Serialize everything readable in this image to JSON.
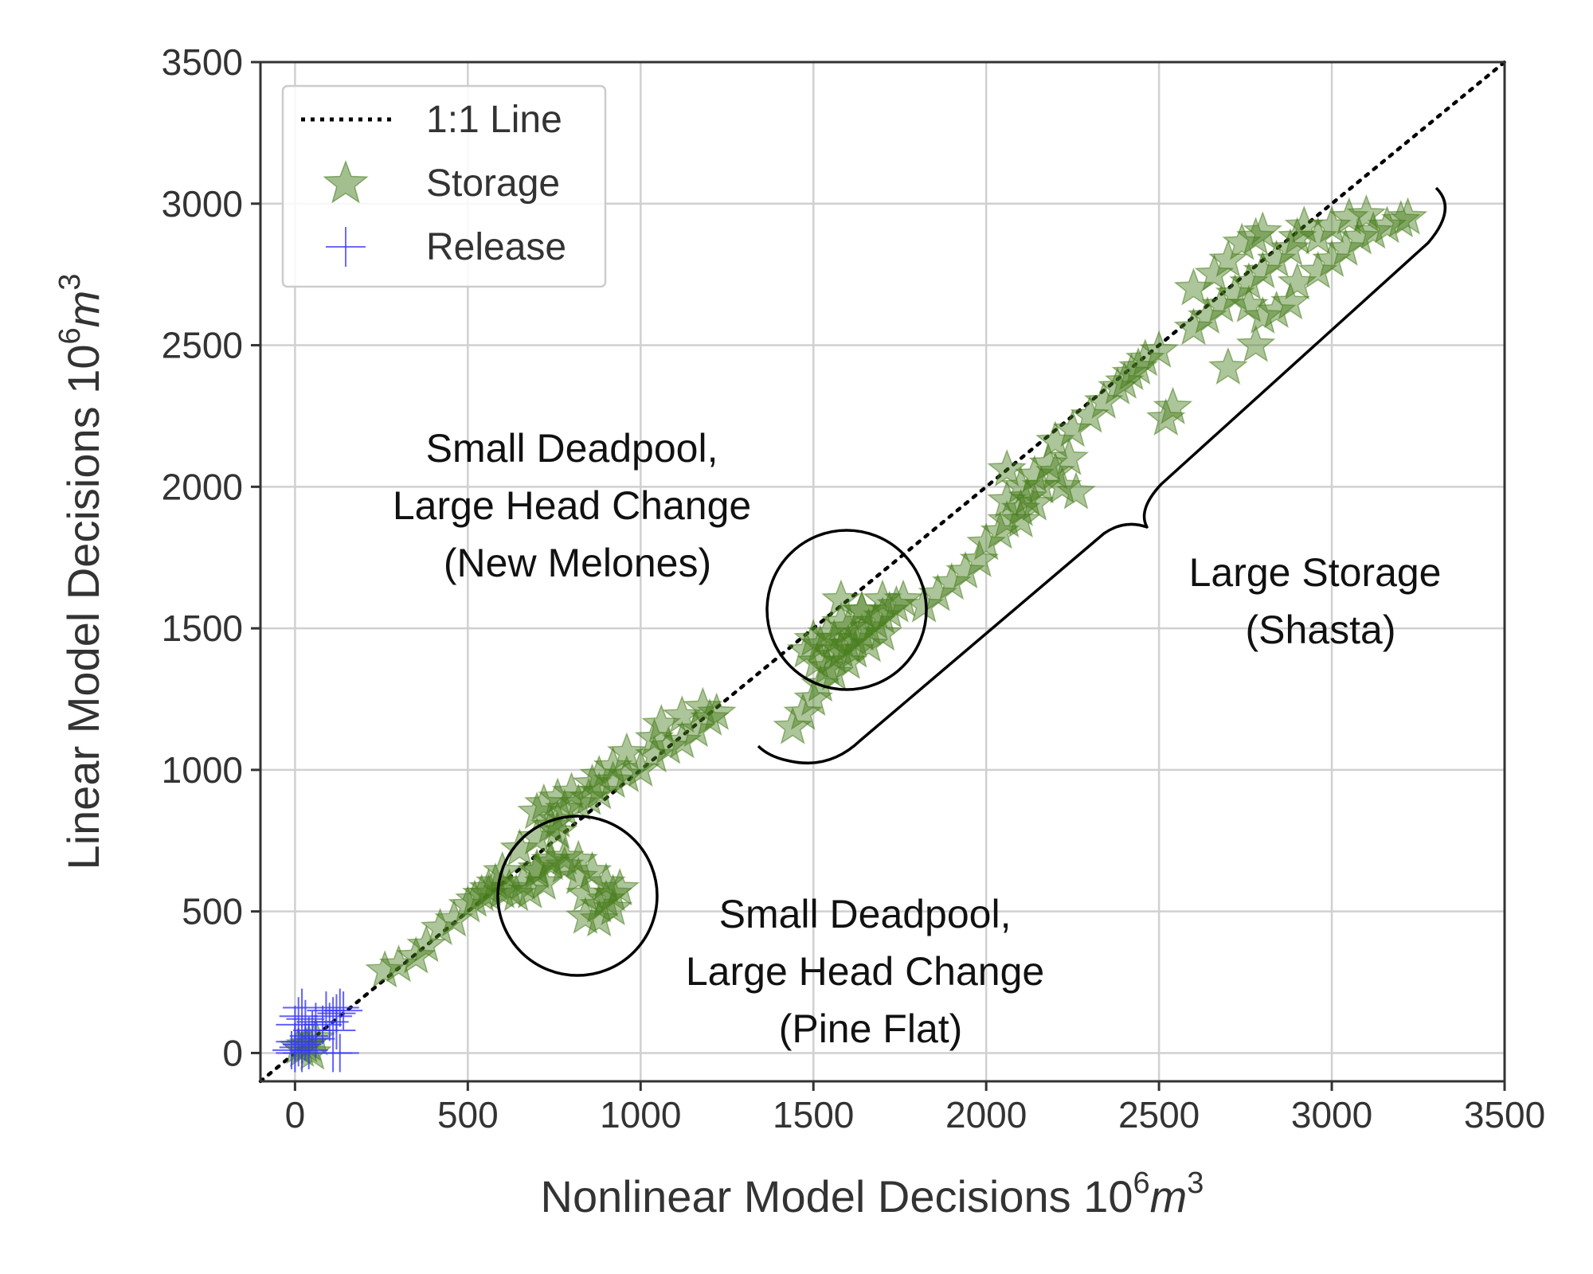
{
  "chart_data": {
    "type": "scatter",
    "xlabel": "Nonlinear Model Decisions",
    "ylabel": "Linear Model Decisions",
    "unit_base": "10",
    "unit_exp": "6",
    "unit_var": "m",
    "unit_pow": "3",
    "xlim": [
      -100,
      3500
    ],
    "ylim": [
      -100,
      3500
    ],
    "x_ticks": [
      "0",
      "500",
      "1000",
      "1500",
      "2000",
      "2500",
      "3000",
      "3500"
    ],
    "y_ticks": [
      "0",
      "500",
      "1000",
      "1500",
      "2000",
      "2500",
      "3000",
      "3500"
    ],
    "grid": true,
    "legend": {
      "position": "top-left",
      "entries": [
        {
          "label": "1:1 Line",
          "marker": "dotted-line",
          "color": "#000000"
        },
        {
          "label": "Storage",
          "marker": "star",
          "color": "#4a7f1f"
        },
        {
          "label": "Release",
          "marker": "plus",
          "color": "#3a3aff"
        }
      ]
    },
    "reference_line": {
      "name": "1:1 Line",
      "x": [
        -100,
        3500
      ],
      "y": [
        -100,
        3500
      ]
    },
    "series": [
      {
        "name": "Storage",
        "marker": "star",
        "color": "#4a7f1f",
        "points": [
          [
            20,
            10
          ],
          [
            40,
            30
          ],
          [
            60,
            50
          ],
          [
            30,
            25
          ],
          [
            50,
            0
          ],
          [
            10,
            20
          ],
          [
            260,
            290
          ],
          [
            300,
            310
          ],
          [
            350,
            340
          ],
          [
            380,
            380
          ],
          [
            420,
            440
          ],
          [
            460,
            470
          ],
          [
            500,
            520
          ],
          [
            520,
            540
          ],
          [
            560,
            580
          ],
          [
            580,
            600
          ],
          [
            600,
            640
          ],
          [
            540,
            560
          ],
          [
            560,
            560
          ],
          [
            600,
            570
          ],
          [
            640,
            560
          ],
          [
            680,
            570
          ],
          [
            720,
            600
          ],
          [
            700,
            650
          ],
          [
            740,
            670
          ],
          [
            780,
            660
          ],
          [
            820,
            620
          ],
          [
            840,
            560
          ],
          [
            880,
            520
          ],
          [
            900,
            540
          ],
          [
            920,
            560
          ],
          [
            940,
            580
          ],
          [
            900,
            600
          ],
          [
            860,
            640
          ],
          [
            820,
            680
          ],
          [
            780,
            690
          ],
          [
            740,
            680
          ],
          [
            700,
            640
          ],
          [
            660,
            600
          ],
          [
            620,
            580
          ],
          [
            840,
            480
          ],
          [
            880,
            470
          ],
          [
            920,
            510
          ],
          [
            650,
            720
          ],
          [
            700,
            760
          ],
          [
            740,
            800
          ],
          [
            760,
            820
          ],
          [
            780,
            860
          ],
          [
            820,
            880
          ],
          [
            850,
            900
          ],
          [
            880,
            920
          ],
          [
            920,
            960
          ],
          [
            960,
            980
          ],
          [
            1000,
            1000
          ],
          [
            1040,
            1050
          ],
          [
            1080,
            1080
          ],
          [
            1120,
            1100
          ],
          [
            1160,
            1140
          ],
          [
            1200,
            1180
          ],
          [
            1220,
            1200
          ],
          [
            1180,
            1220
          ],
          [
            1120,
            1190
          ],
          [
            1060,
            1160
          ],
          [
            1040,
            1110
          ],
          [
            960,
            1060
          ],
          [
            920,
            1010
          ],
          [
            880,
            980
          ],
          [
            860,
            950
          ],
          [
            800,
            920
          ],
          [
            760,
            900
          ],
          [
            720,
            880
          ],
          [
            700,
            850
          ],
          [
            760,
            780
          ],
          [
            1440,
            1150
          ],
          [
            1470,
            1200
          ],
          [
            1500,
            1250
          ],
          [
            1520,
            1300
          ],
          [
            1510,
            1380
          ],
          [
            1540,
            1360
          ],
          [
            1560,
            1400
          ],
          [
            1580,
            1420
          ],
          [
            1600,
            1440
          ],
          [
            1620,
            1460
          ],
          [
            1640,
            1480
          ],
          [
            1660,
            1500
          ],
          [
            1680,
            1520
          ],
          [
            1700,
            1540
          ],
          [
            1720,
            1560
          ],
          [
            1740,
            1580
          ],
          [
            1760,
            1600
          ],
          [
            1700,
            1600
          ],
          [
            1640,
            1560
          ],
          [
            1580,
            1520
          ],
          [
            1540,
            1480
          ],
          [
            1500,
            1460
          ],
          [
            1480,
            1420
          ],
          [
            1520,
            1440
          ],
          [
            1560,
            1460
          ],
          [
            1600,
            1500
          ],
          [
            1620,
            1420
          ],
          [
            1660,
            1440
          ],
          [
            1700,
            1480
          ],
          [
            1600,
            1380
          ],
          [
            1560,
            1340
          ],
          [
            1640,
            1560
          ],
          [
            1580,
            1600
          ],
          [
            1820,
            1580
          ],
          [
            1860,
            1620
          ],
          [
            1900,
            1660
          ],
          [
            1940,
            1700
          ],
          [
            1980,
            1740
          ],
          [
            2000,
            1800
          ],
          [
            2040,
            1840
          ],
          [
            2060,
            1880
          ],
          [
            2100,
            1920
          ],
          [
            2120,
            1960
          ],
          [
            2160,
            2000
          ],
          [
            2200,
            2050
          ],
          [
            2240,
            2100
          ],
          [
            2060,
            1950
          ],
          [
            2100,
            2000
          ],
          [
            2140,
            2040
          ],
          [
            2180,
            2080
          ],
          [
            2220,
            2000
          ],
          [
            2260,
            1980
          ],
          [
            2140,
            1940
          ],
          [
            2100,
            1880
          ],
          [
            2060,
            2060
          ],
          [
            2200,
            2160
          ],
          [
            2250,
            2200
          ],
          [
            2300,
            2250
          ],
          [
            2340,
            2300
          ],
          [
            2380,
            2350
          ],
          [
            2420,
            2400
          ],
          [
            2460,
            2450
          ],
          [
            2500,
            2480
          ],
          [
            2520,
            2240
          ],
          [
            2540,
            2280
          ],
          [
            2400,
            2370
          ],
          [
            2440,
            2420
          ],
          [
            2600,
            2560
          ],
          [
            2640,
            2600
          ],
          [
            2680,
            2640
          ],
          [
            2720,
            2680
          ],
          [
            2760,
            2720
          ],
          [
            2800,
            2760
          ],
          [
            2840,
            2800
          ],
          [
            2880,
            2840
          ],
          [
            2900,
            2880
          ],
          [
            2920,
            2920
          ],
          [
            2760,
            2640
          ],
          [
            2800,
            2600
          ],
          [
            2840,
            2620
          ],
          [
            2880,
            2650
          ],
          [
            2900,
            2720
          ],
          [
            2960,
            2760
          ],
          [
            3000,
            2800
          ],
          [
            3040,
            2840
          ],
          [
            3080,
            2880
          ],
          [
            3120,
            2900
          ],
          [
            3160,
            2920
          ],
          [
            3200,
            2940
          ],
          [
            3220,
            2950
          ],
          [
            3000,
            2920
          ],
          [
            3050,
            2950
          ],
          [
            3100,
            2960
          ],
          [
            2960,
            2880
          ],
          [
            2700,
            2420
          ],
          [
            2780,
            2500
          ],
          [
            2600,
            2700
          ],
          [
            2660,
            2750
          ],
          [
            2700,
            2800
          ],
          [
            2740,
            2860
          ],
          [
            2780,
            2880
          ],
          [
            2800,
            2900
          ]
        ]
      },
      {
        "name": "Release",
        "marker": "plus",
        "color": "#3a3aff",
        "points": [
          [
            0,
            0
          ],
          [
            10,
            20
          ],
          [
            20,
            30
          ],
          [
            0,
            100
          ],
          [
            10,
            130
          ],
          [
            20,
            160
          ],
          [
            30,
            40
          ],
          [
            40,
            60
          ],
          [
            50,
            80
          ],
          [
            60,
            50
          ],
          [
            80,
            100
          ],
          [
            100,
            110
          ],
          [
            110,
            130
          ],
          [
            120,
            140
          ],
          [
            130,
            160
          ],
          [
            140,
            150
          ],
          [
            130,
            0
          ],
          [
            110,
            0
          ],
          [
            0,
            40
          ],
          [
            -10,
            10
          ],
          [
            30,
            120
          ],
          [
            60,
            110
          ],
          [
            90,
            150
          ],
          [
            120,
            80
          ],
          [
            20,
            0
          ],
          [
            40,
            10
          ]
        ]
      }
    ],
    "annotations": [
      {
        "name": "new-melones",
        "lines": [
          "Small Deadpool,",
          "Large Head Change",
          "(New Melones)"
        ]
      },
      {
        "name": "pine-flat",
        "lines": [
          "Small Deadpool,",
          "Large Head Change",
          "(Pine Flat)"
        ]
      },
      {
        "name": "shasta",
        "lines": [
          "Large Storage",
          "(Shasta)"
        ]
      }
    ]
  }
}
